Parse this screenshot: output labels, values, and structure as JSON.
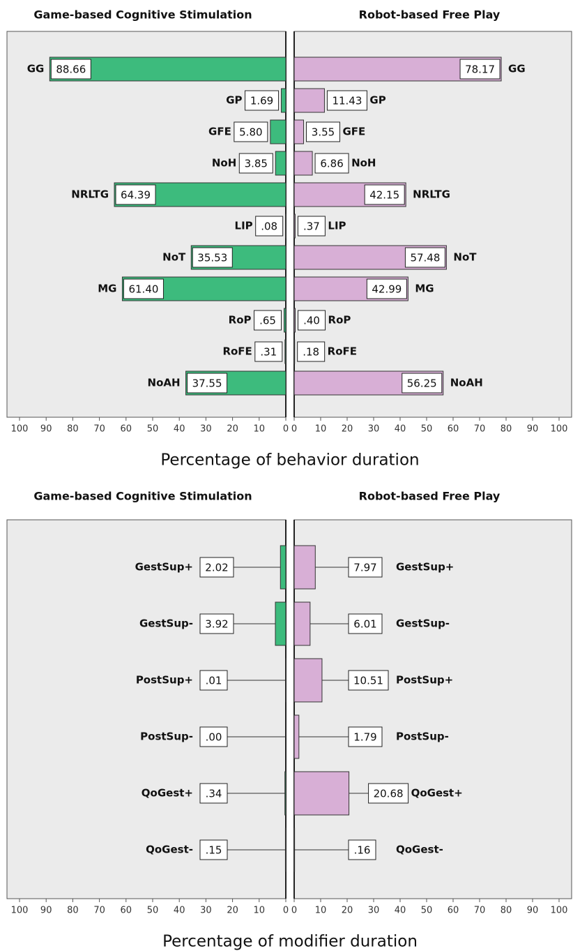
{
  "chart_data": [
    {
      "type": "butterfly",
      "xlabel": "Percentage of behavior duration",
      "categories": [
        "GG",
        "GP",
        "GFE",
        "NoH",
        "NRLTG",
        "LIP",
        "NoT",
        "MG",
        "RoP",
        "RoFE",
        "NoAH"
      ],
      "series": [
        {
          "name": "Game-based Cognitive Stimulation",
          "color": "#3dbb7d",
          "values": [
            88.66,
            1.69,
            5.8,
            3.85,
            64.39,
            0.08,
            35.53,
            61.4,
            0.65,
            0.31,
            37.55
          ],
          "value_labels": [
            "88.66",
            "1.69",
            "5.80",
            "3.85",
            "64.39",
            ".08",
            "35.53",
            "61.40",
            ".65",
            ".31",
            "37.55"
          ]
        },
        {
          "name": "Robot-based Free Play",
          "color": "#d8afd6",
          "values": [
            78.17,
            11.43,
            3.55,
            6.86,
            42.15,
            0.37,
            57.48,
            42.99,
            0.4,
            0.18,
            56.25
          ],
          "value_labels": [
            "78.17",
            "11.43",
            "3.55",
            "6.86",
            "42.15",
            ".37",
            "57.48",
            "42.99",
            ".40",
            ".18",
            "56.25"
          ]
        }
      ],
      "xlim": [
        0,
        100
      ],
      "xticks": [
        0,
        10,
        20,
        30,
        40,
        50,
        60,
        70,
        80,
        90,
        100
      ]
    },
    {
      "type": "butterfly",
      "xlabel": "Percentage of modifier duration",
      "categories": [
        "GestSup+",
        "GestSup-",
        "PostSup+",
        "PostSup-",
        "QoGest+",
        "QoGest-"
      ],
      "series": [
        {
          "name": "Game-based Cognitive Stimulation",
          "color": "#3dbb7d",
          "values": [
            2.02,
            3.92,
            0.01,
            0.0,
            0.34,
            0.15
          ],
          "value_labels": [
            "2.02",
            "3.92",
            ".01",
            ".00",
            ".34",
            ".15"
          ]
        },
        {
          "name": "Robot-based Free Play",
          "color": "#d8afd6",
          "values": [
            7.97,
            6.01,
            10.51,
            1.79,
            20.68,
            0.16
          ],
          "value_labels": [
            "7.97",
            "6.01",
            "10.51",
            "1.79",
            "20.68",
            ".16"
          ]
        }
      ],
      "xlim": [
        0,
        100
      ],
      "xticks": [
        0,
        10,
        20,
        30,
        40,
        50,
        60,
        70,
        80,
        90,
        100
      ]
    }
  ]
}
